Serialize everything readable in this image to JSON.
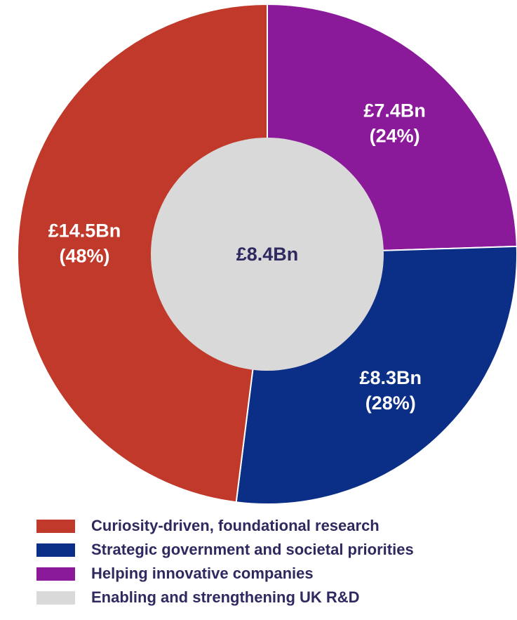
{
  "chart_data": {
    "type": "pie",
    "style": "donut",
    "slices": [
      {
        "label": "Curiosity-driven, foundational research",
        "value": 14.5,
        "value_text": "£14.5Bn",
        "percent_text": "(48%)",
        "color": "#c0392b"
      },
      {
        "label": "Strategic government and societal priorities",
        "value": 8.3,
        "value_text": "£8.3Bn",
        "percent_text": "(28%)",
        "color": "#0b2f86"
      },
      {
        "label": "Helping innovative companies",
        "value": 7.4,
        "value_text": "£7.4Bn",
        "percent_text": "(24%)",
        "color": "#8b1a9b"
      }
    ],
    "center": {
      "label": "Enabling and strengthening UK R&D",
      "value": 8.4,
      "value_text": "£8.4Bn",
      "color": "#d9d9d9"
    },
    "legend_position": "bottom"
  },
  "legend": {
    "items": [
      {
        "label": "Curiosity-driven, foundational research",
        "color": "#c0392b"
      },
      {
        "label": "Strategic government and societal priorities",
        "color": "#0b2f86"
      },
      {
        "label": "Helping innovative companies",
        "color": "#8b1a9b"
      },
      {
        "label": "Enabling and strengthening UK R&D",
        "color": "#d9d9d9"
      }
    ]
  }
}
